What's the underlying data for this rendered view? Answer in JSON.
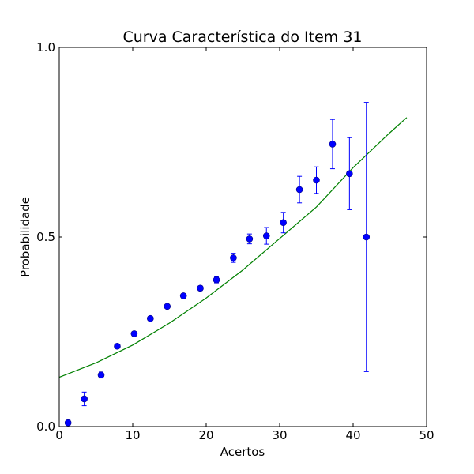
{
  "chart_data": {
    "type": "scatter",
    "title": "Curva Característica do Item 31",
    "xlabel": "Acertos",
    "ylabel": "Probabilidade",
    "xlim": [
      0,
      50
    ],
    "ylim": [
      0.0,
      1.0
    ],
    "x_ticks": [
      0,
      10,
      20,
      30,
      40,
      50
    ],
    "x_tick_labels": [
      "0",
      "10",
      "20",
      "30",
      "40",
      "50"
    ],
    "y_ticks": [
      0.0,
      0.5,
      1.0
    ],
    "y_tick_labels": [
      "0.0",
      "0.5",
      "1.0"
    ],
    "grid": false,
    "colors": {
      "points": "#0000ff",
      "error_bars": "#0000ff",
      "curve": "#008000",
      "frame": "#000000"
    },
    "series": [
      {
        "type": "errorbar",
        "x": [
          1.2,
          3.4,
          5.7,
          7.9,
          10.2,
          12.4,
          14.7,
          16.9,
          19.2,
          21.4,
          23.7,
          25.9,
          28.2,
          30.5,
          32.7,
          35.0,
          37.2,
          39.5,
          41.8
        ],
        "y": [
          0.01,
          0.073,
          0.136,
          0.212,
          0.245,
          0.285,
          0.317,
          0.345,
          0.365,
          0.387,
          0.445,
          0.495,
          0.503,
          0.538,
          0.625,
          0.65,
          0.745,
          0.667,
          0.5
        ],
        "yerr": [
          0.007,
          0.018,
          0.008,
          0.004,
          0.003,
          0.003,
          0.003,
          0.003,
          0.006,
          0.008,
          0.012,
          0.013,
          0.022,
          0.027,
          0.035,
          0.035,
          0.065,
          0.095,
          0.355
        ]
      },
      {
        "type": "line",
        "x": [
          0,
          5,
          10,
          15,
          20,
          25,
          30,
          35,
          40,
          45,
          47.3
        ],
        "y": [
          0.13,
          0.168,
          0.215,
          0.273,
          0.339,
          0.413,
          0.496,
          0.579,
          0.683,
          0.775,
          0.815
        ]
      }
    ]
  }
}
